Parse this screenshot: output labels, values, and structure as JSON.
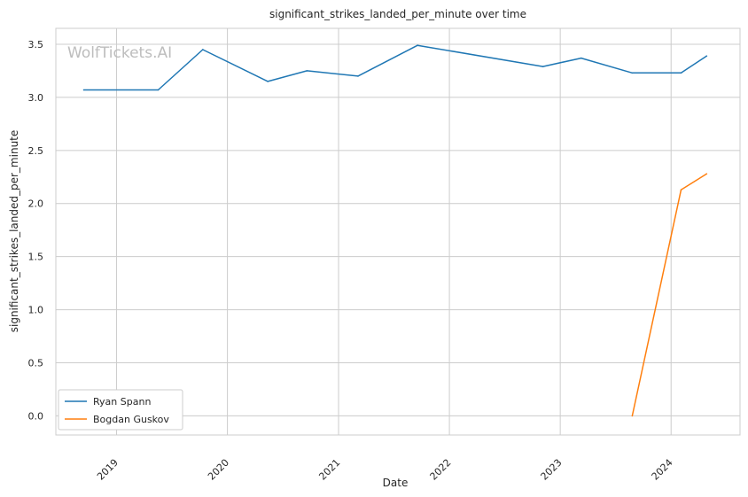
{
  "chart_data": {
    "type": "line",
    "title": "significant_strikes_landed_per_minute over time",
    "xlabel": "Date",
    "ylabel": "significant_strikes_landed_per_minute",
    "watermark": "WolfTickets.AI",
    "xlim": [
      "2018-06-15",
      "2024-08-15"
    ],
    "ylim": [
      -0.18,
      3.65
    ],
    "x_ticks": [
      "2019-01-01",
      "2020-01-01",
      "2021-01-01",
      "2022-01-01",
      "2023-01-01",
      "2024-01-01"
    ],
    "x_tick_labels": [
      "2019",
      "2020",
      "2021",
      "2022",
      "2023",
      "2024"
    ],
    "y_ticks": [
      0.0,
      0.5,
      1.0,
      1.5,
      2.0,
      2.5,
      3.0,
      3.5
    ],
    "y_tick_labels": [
      "0.0",
      "0.5",
      "1.0",
      "1.5",
      "2.0",
      "2.5",
      "3.0",
      "3.5"
    ],
    "grid": true,
    "legend_position": "lower-left",
    "series": [
      {
        "name": "Ryan Spann",
        "color": "#1f77b4",
        "points": [
          {
            "x": "2018-09-15",
            "y": 3.07
          },
          {
            "x": "2019-05-18",
            "y": 3.07
          },
          {
            "x": "2019-10-12",
            "y": 3.45
          },
          {
            "x": "2020-05-13",
            "y": 3.15
          },
          {
            "x": "2020-09-19",
            "y": 3.25
          },
          {
            "x": "2021-03-06",
            "y": 3.2
          },
          {
            "x": "2021-09-18",
            "y": 3.49
          },
          {
            "x": "2022-11-05",
            "y": 3.29
          },
          {
            "x": "2023-03-11",
            "y": 3.37
          },
          {
            "x": "2023-08-26",
            "y": 3.23
          },
          {
            "x": "2024-02-03",
            "y": 3.23
          },
          {
            "x": "2024-04-27",
            "y": 3.39
          }
        ]
      },
      {
        "name": "Bogdan Guskov",
        "color": "#ff7f0e",
        "points": [
          {
            "x": "2023-08-26",
            "y": 0.0
          },
          {
            "x": "2024-02-03",
            "y": 2.13
          },
          {
            "x": "2024-04-27",
            "y": 2.28
          }
        ]
      }
    ]
  }
}
